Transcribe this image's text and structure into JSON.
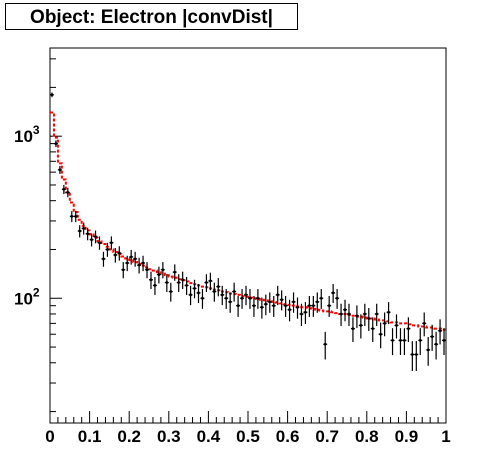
{
  "chart_data": {
    "type": "line",
    "title": "Object: Electron |convDist|",
    "xlabel": "",
    "ylabel": "",
    "xlim": [
      0,
      1
    ],
    "ylim": [
      17,
      3500
    ],
    "y_scale": "log",
    "grid": false,
    "legend": "none",
    "x_ticks": [
      "0",
      "0.1",
      "0.2",
      "0.3",
      "0.4",
      "0.5",
      "0.6",
      "0.7",
      "0.8",
      "0.9",
      "1"
    ],
    "y_ticks": [
      {
        "value": 100,
        "base": "10",
        "exp": "2"
      },
      {
        "value": 1000,
        "base": "10",
        "exp": "3"
      }
    ],
    "colors": {
      "data": "#000000",
      "mc": "#ff0000",
      "frame": "#000000"
    },
    "series": [
      {
        "style": "histogram-step",
        "color": "#ff0000",
        "bin_width": 0.01,
        "values": [
          1400,
          980,
          680,
          540,
          450,
          390,
          340,
          305,
          280,
          262,
          248,
          236,
          225,
          216,
          208,
          200,
          193,
          187,
          181,
          176,
          172,
          167,
          163,
          159,
          155,
          151,
          148,
          145,
          142,
          139,
          136,
          134,
          131,
          129,
          127,
          124,
          122,
          120,
          118,
          117,
          115,
          113,
          112,
          110,
          109,
          107,
          106,
          105,
          103,
          102,
          101,
          100,
          99,
          98,
          97,
          96,
          95,
          94,
          93,
          92,
          91,
          90,
          89,
          88,
          88,
          87,
          86,
          85,
          84,
          83,
          83,
          82,
          81,
          80,
          80,
          79,
          78,
          77,
          77,
          76,
          75,
          75,
          74,
          73,
          73,
          72,
          71,
          71,
          70,
          70,
          69,
          68,
          68,
          67,
          67,
          66,
          66,
          65,
          65,
          64
        ]
      },
      {
        "style": "points-errorbars",
        "color": "#000000",
        "x": [
          0.005,
          0.015,
          0.025,
          0.035,
          0.045,
          0.055,
          0.065,
          0.075,
          0.085,
          0.095,
          0.105,
          0.115,
          0.125,
          0.135,
          0.145,
          0.155,
          0.165,
          0.175,
          0.185,
          0.195,
          0.205,
          0.215,
          0.225,
          0.235,
          0.245,
          0.255,
          0.265,
          0.275,
          0.285,
          0.295,
          0.305,
          0.315,
          0.325,
          0.335,
          0.345,
          0.355,
          0.365,
          0.375,
          0.385,
          0.395,
          0.405,
          0.415,
          0.425,
          0.435,
          0.445,
          0.455,
          0.465,
          0.475,
          0.485,
          0.495,
          0.505,
          0.515,
          0.525,
          0.535,
          0.545,
          0.555,
          0.565,
          0.575,
          0.585,
          0.595,
          0.605,
          0.615,
          0.625,
          0.635,
          0.645,
          0.655,
          0.665,
          0.675,
          0.685,
          0.695,
          0.705,
          0.715,
          0.725,
          0.735,
          0.745,
          0.755,
          0.765,
          0.775,
          0.785,
          0.795,
          0.805,
          0.815,
          0.825,
          0.835,
          0.845,
          0.855,
          0.865,
          0.875,
          0.885,
          0.895,
          0.905,
          0.915,
          0.925,
          0.935,
          0.945,
          0.955,
          0.965,
          0.975,
          0.985,
          0.995
        ],
        "y": [
          1800,
          900,
          620,
          470,
          450,
          320,
          320,
          260,
          270,
          250,
          230,
          240,
          220,
          175,
          200,
          220,
          185,
          190,
          150,
          165,
          180,
          175,
          160,
          165,
          150,
          130,
          120,
          140,
          150,
          125,
          110,
          145,
          125,
          130,
          120,
          105,
          115,
          108,
          100,
          125,
          128,
          110,
          118,
          105,
          100,
          95,
          110,
          90,
          100,
          105,
          100,
          90,
          100,
          88,
          92,
          95,
          90,
          105,
          98,
          90,
          85,
          95,
          88,
          80,
          82,
          90,
          90,
          95,
          100,
          52,
          90,
          108,
          100,
          80,
          85,
          80,
          65,
          78,
          68,
          80,
          75,
          65,
          80,
          60,
          70,
          82,
          55,
          68,
          55,
          55,
          65,
          45,
          45,
          55,
          70,
          48,
          58,
          52,
          63,
          55
        ]
      }
    ]
  }
}
